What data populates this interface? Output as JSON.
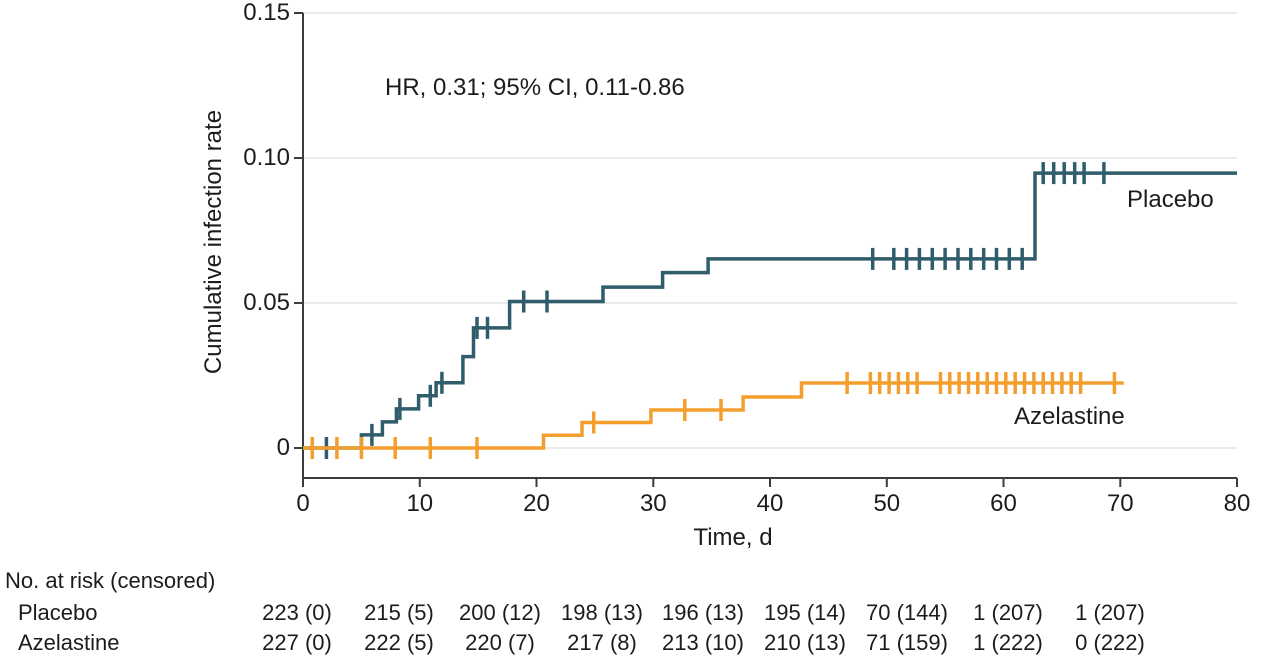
{
  "chart_data": {
    "type": "line",
    "subtype": "kaplan-meier-cumulative-incidence-steps",
    "annotation": "HR, 0.31; 95% CI, 0.11-0.86",
    "xlabel": "Time, d",
    "ylabel": "Cumulative infection rate",
    "xlim": [
      0,
      80
    ],
    "ylim": [
      0,
      0.15
    ],
    "grid": "horizontal",
    "grid_color": "#e4e4e4",
    "axis_color": "#3c3c3c",
    "x_ticks": [
      0,
      10,
      20,
      30,
      40,
      50,
      60,
      70,
      80
    ],
    "y_ticks": [
      {
        "value": 0,
        "label": "0"
      },
      {
        "value": 0.05,
        "label": "0.05"
      },
      {
        "value": 0.1,
        "label": "0.10"
      },
      {
        "value": 0.15,
        "label": "0.15"
      }
    ],
    "series": [
      {
        "name": "Placebo",
        "color": "#2f5d6b",
        "end_x": 80,
        "steps": [
          [
            0,
            0
          ],
          [
            5.0,
            0.0045
          ],
          [
            6.8,
            0.009
          ],
          [
            8.0,
            0.0135
          ],
          [
            9.9,
            0.018
          ],
          [
            11.4,
            0.0225
          ],
          [
            13.7,
            0.0315
          ],
          [
            14.6,
            0.0414
          ],
          [
            17.7,
            0.0505
          ],
          [
            25.7,
            0.0555
          ],
          [
            30.8,
            0.0605
          ],
          [
            34.7,
            0.0652
          ],
          [
            62.7,
            0.0948
          ]
        ],
        "censor_marks": [
          [
            2.0,
            0
          ],
          [
            5.9,
            0.0045
          ],
          [
            8.3,
            0.0135
          ],
          [
            10.9,
            0.018
          ],
          [
            11.9,
            0.0225
          ],
          [
            14.9,
            0.0414
          ],
          [
            15.8,
            0.0414
          ],
          [
            18.9,
            0.0505
          ],
          [
            20.9,
            0.0505
          ],
          [
            48.8,
            0.0652
          ],
          [
            50.6,
            0.0652
          ],
          [
            51.7,
            0.0652
          ],
          [
            52.8,
            0.0652
          ],
          [
            53.9,
            0.0652
          ],
          [
            55.0,
            0.0652
          ],
          [
            56.1,
            0.0652
          ],
          [
            57.2,
            0.0652
          ],
          [
            58.3,
            0.0652
          ],
          [
            59.4,
            0.0652
          ],
          [
            60.5,
            0.0652
          ],
          [
            61.6,
            0.0652
          ],
          [
            63.4,
            0.0948
          ],
          [
            64.3,
            0.0948
          ],
          [
            65.2,
            0.0948
          ],
          [
            66.1,
            0.0948
          ],
          [
            66.9,
            0.0948
          ],
          [
            68.6,
            0.0948
          ]
        ]
      },
      {
        "name": "Azelastine",
        "color": "#f49e2e",
        "end_x": 70.3,
        "steps": [
          [
            0,
            0
          ],
          [
            20.6,
            0.0044
          ],
          [
            23.9,
            0.0088
          ],
          [
            29.8,
            0.0131
          ],
          [
            37.7,
            0.0176
          ],
          [
            42.7,
            0.0224
          ]
        ],
        "censor_marks": [
          [
            0.8,
            0
          ],
          [
            2.9,
            0
          ],
          [
            5.0,
            0
          ],
          [
            7.9,
            0
          ],
          [
            10.9,
            0
          ],
          [
            14.9,
            0
          ],
          [
            24.9,
            0.0088
          ],
          [
            32.7,
            0.0131
          ],
          [
            35.8,
            0.0131
          ],
          [
            46.6,
            0.0224
          ],
          [
            48.6,
            0.0224
          ],
          [
            49.4,
            0.0224
          ],
          [
            50.2,
            0.0224
          ],
          [
            51.0,
            0.0224
          ],
          [
            51.8,
            0.0224
          ],
          [
            52.6,
            0.0224
          ],
          [
            54.6,
            0.0224
          ],
          [
            55.4,
            0.0224
          ],
          [
            56.2,
            0.0224
          ],
          [
            57.0,
            0.0224
          ],
          [
            57.8,
            0.0224
          ],
          [
            58.6,
            0.0224
          ],
          [
            59.4,
            0.0224
          ],
          [
            60.2,
            0.0224
          ],
          [
            61.0,
            0.0224
          ],
          [
            61.8,
            0.0224
          ],
          [
            62.6,
            0.0224
          ],
          [
            63.4,
            0.0224
          ],
          [
            64.2,
            0.0224
          ],
          [
            65.0,
            0.0224
          ],
          [
            65.8,
            0.0224
          ],
          [
            66.6,
            0.0224
          ],
          [
            69.5,
            0.0224
          ]
        ]
      }
    ],
    "risk_table": {
      "header": "No. at risk (censored)",
      "time_points": [
        0,
        10,
        20,
        30,
        40,
        50,
        60,
        70,
        80
      ],
      "rows": [
        {
          "label": "Placebo",
          "values": [
            "223 (0)",
            "215 (5)",
            "200 (12)",
            "198 (13)",
            "196 (13)",
            "195 (14)",
            "70 (144)",
            "1 (207)",
            "1 (207)"
          ]
        },
        {
          "label": "Azelastine",
          "values": [
            "227 (0)",
            "222 (5)",
            "220 (7)",
            "217 (8)",
            "213 (10)",
            "210 (13)",
            "71 (159)",
            "1 (222)",
            "0 (222)"
          ]
        }
      ]
    }
  }
}
